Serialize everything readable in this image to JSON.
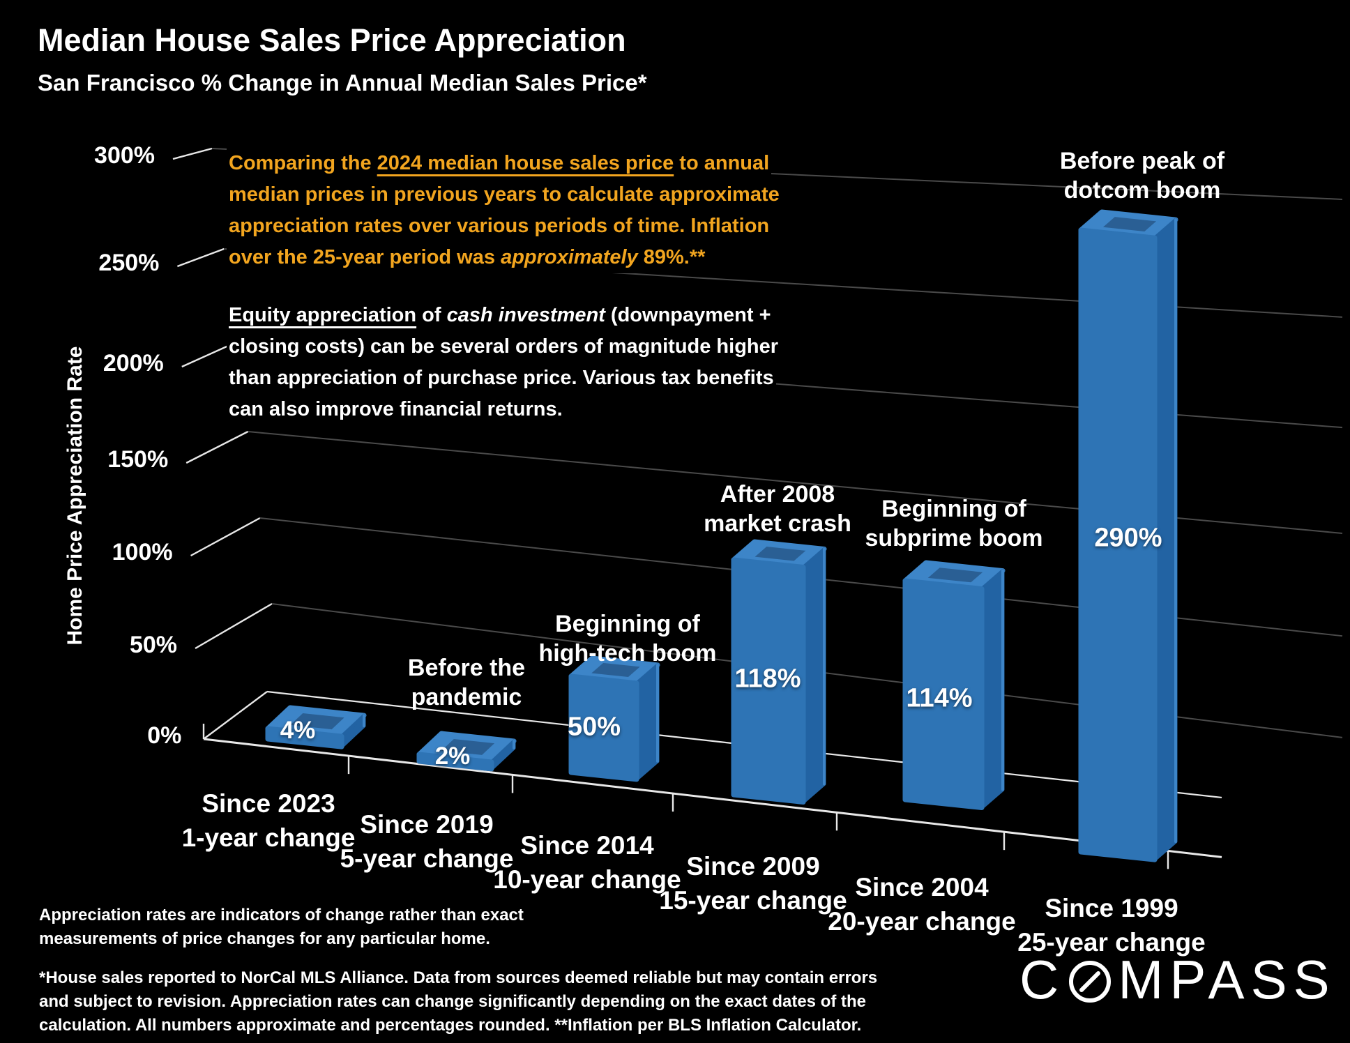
{
  "header": {
    "title": "Median House Sales Price Appreciation",
    "subtitle": "San Francisco % Change in Annual Median Sales Price*"
  },
  "notes": {
    "comparison": {
      "color": "#F2A51F",
      "lines": [
        [
          {
            "t": "Comparing the "
          },
          {
            "t": "2024 median house sales price",
            "u": true
          },
          {
            "t": " to annual"
          }
        ],
        [
          {
            "t": "median prices in previous years to calculate approximate"
          }
        ],
        [
          {
            "t": "appreciation rates over various periods of time. Inflation"
          }
        ],
        [
          {
            "t": "over the 25-year period was "
          },
          {
            "t": "approximately",
            "i": true
          },
          {
            "t": " 89%.**"
          }
        ]
      ]
    },
    "equity": {
      "color": "#FFFFFF",
      "lines": [
        [
          {
            "t": "Equity appreciation",
            "u": true
          },
          {
            "t": " of "
          },
          {
            "t": "cash investment",
            "i": true
          },
          {
            "t": " (downpayment +"
          }
        ],
        [
          {
            "t": "closing costs) can be several orders of magnitude higher"
          }
        ],
        [
          {
            "t": "than appreciation of purchase price. Various tax benefits"
          }
        ],
        [
          {
            "t": "can also improve financial returns."
          }
        ]
      ]
    }
  },
  "chart_data": {
    "type": "bar",
    "title": "Median House Sales Price Appreciation",
    "subtitle": "San Francisco % Change in Annual Median Sales Price*",
    "xlabel": "",
    "ylabel": "Home Price Appreciation Rate",
    "ylim": [
      0,
      300
    ],
    "y_ticks": [
      "300%",
      "250%",
      "200%",
      "150%",
      "100%",
      "50%",
      "0%"
    ],
    "grid": true,
    "legend": false,
    "projection": "3d",
    "categories": [
      "Since 2023",
      "Since 2019",
      "Since 2014",
      "Since 2009",
      "Since 2004",
      "Since 1999"
    ],
    "category_sublabels": [
      "1-year change",
      "5-year change",
      "10-year change",
      "15-year change",
      "20-year change",
      "25-year change"
    ],
    "values": [
      4,
      2,
      50,
      118,
      114,
      290
    ],
    "value_labels": [
      "4%",
      "2%",
      "50%",
      "118%",
      "114%",
      "290%"
    ],
    "bar_annotations": [
      "",
      "Before the\npandemic",
      "Beginning of\nhigh-tech boom",
      "After 2008\nmarket crash",
      "Beginning of\nsubprime boom",
      "Before peak of\ndotcom boom"
    ]
  },
  "colors": {
    "background": "#000000",
    "bar_front": "#2E74B5",
    "bar_side": "#2263A3",
    "bar_rim": "#3D85C8",
    "bar_inset": "#2A5F94",
    "accent_orange": "#F2A51F",
    "grid": "#4A4A4A",
    "axis": "#E8E8E8",
    "text": "#FFFFFF"
  },
  "footnotes": {
    "disclaimer": [
      "Appreciation rates are indicators of change rather than exact",
      "measurements of price changes for any particular home."
    ],
    "sources": [
      "*House sales reported to NorCal MLS Alliance. Data from sources deemed reliable but may contain errors",
      "and subject to revision. Appreciation rates can change significantly depending on the exact dates of the",
      "calculation. All numbers approximate and percentages rounded. **Inflation per BLS Inflation Calculator."
    ]
  },
  "logo": {
    "prefix": "C",
    "suffix": "MPASS"
  }
}
